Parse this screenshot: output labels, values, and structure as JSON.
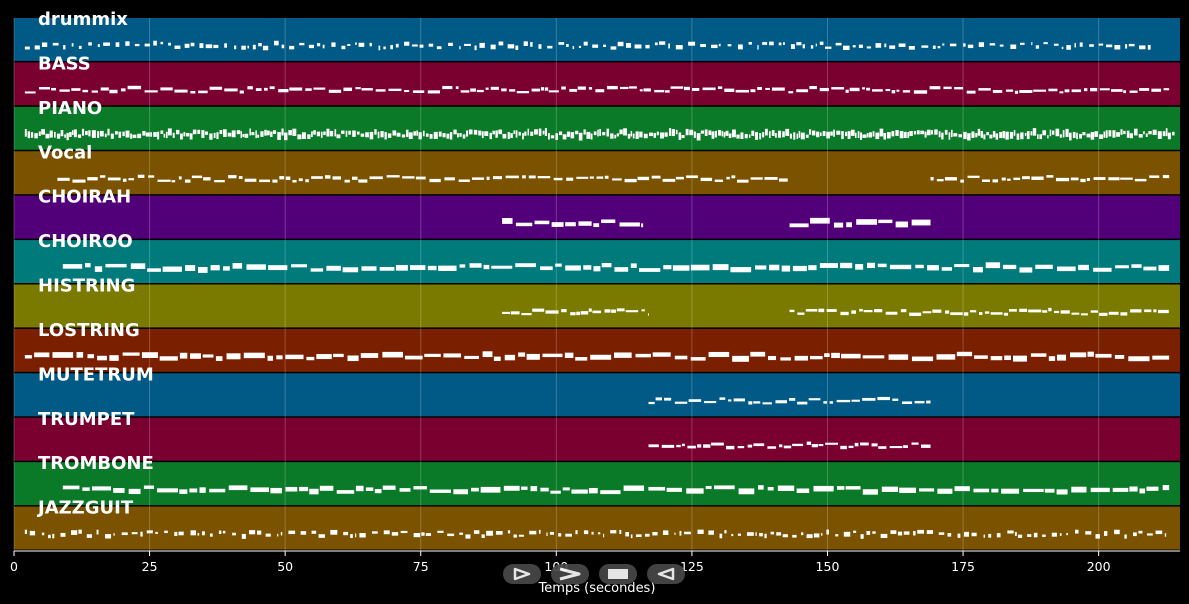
{
  "chart_data": {
    "type": "piano-roll",
    "xlabel": "Temps (secondes)",
    "xlim": [
      0,
      215
    ],
    "xticks": [
      0,
      25,
      50,
      75,
      100,
      125,
      150,
      175,
      200
    ],
    "tracks": [
      {
        "name": "drummix",
        "color": "#005a85",
        "active": [
          [
            2,
            210
          ]
        ],
        "style": "sparse"
      },
      {
        "name": "BASS",
        "color": "#7a0030",
        "active": [
          [
            2,
            213
          ]
        ],
        "style": "line"
      },
      {
        "name": "PIANO",
        "color": "#0a7a28",
        "active": [
          [
            2,
            214
          ]
        ],
        "style": "dense"
      },
      {
        "name": "Vocal",
        "color": "#7a5200",
        "active": [
          [
            8,
            143
          ],
          [
            169,
            213
          ]
        ],
        "style": "line"
      },
      {
        "name": "CHOIRAH",
        "color": "#52007a",
        "active": [
          [
            90,
            116
          ],
          [
            143,
            169
          ]
        ],
        "style": "block"
      },
      {
        "name": "CHOIROO",
        "color": "#007a7a",
        "active": [
          [
            9,
            213
          ]
        ],
        "style": "block"
      },
      {
        "name": "HISTRING",
        "color": "#7a7a00",
        "active": [
          [
            90,
            117
          ],
          [
            143,
            213
          ]
        ],
        "style": "line"
      },
      {
        "name": "LOSTRING",
        "color": "#7a2000",
        "active": [
          [
            2,
            213
          ]
        ],
        "style": "block"
      },
      {
        "name": "MUTETRUM",
        "color": "#005a85",
        "active": [
          [
            117,
            169
          ]
        ],
        "style": "line"
      },
      {
        "name": "TRUMPET",
        "color": "#7a0030",
        "active": [
          [
            117,
            169
          ]
        ],
        "style": "line"
      },
      {
        "name": "TROMBONE",
        "color": "#0a7a28",
        "active": [
          [
            9,
            213
          ]
        ],
        "style": "block"
      },
      {
        "name": "JAZZGUIT",
        "color": "#7a5200",
        "active": [
          [
            2,
            213
          ]
        ],
        "style": "sparse"
      }
    ]
  },
  "controls": {
    "play_icon": "play-icon",
    "fast_forward_icon": "fast-forward-icon",
    "stop_icon": "stop-icon",
    "rewind_icon": "rewind-icon"
  }
}
